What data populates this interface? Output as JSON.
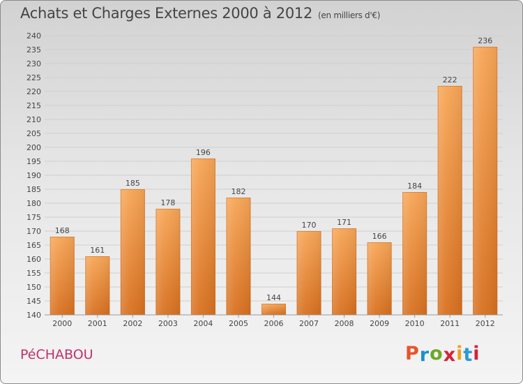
{
  "header": {
    "title": "Achats et Charges Externes 2000 à 2012",
    "subtitle": "(en milliers d'€)"
  },
  "footer": {
    "commune": "PéCHABOU",
    "brand": "Proxiti",
    "brand_colors": [
      "#e8542b",
      "#1a8fd0",
      "#6aaa24",
      "#d4223a",
      "#f0a020",
      "#2a9ad6",
      "#d4223a"
    ]
  },
  "colors": {
    "bar_light": "#f7a657",
    "bar_dark": "#d8701f",
    "grid": "#cfcfcf",
    "text": "#444444"
  },
  "chart_data": {
    "type": "bar",
    "categories": [
      "2000",
      "2001",
      "2002",
      "2003",
      "2004",
      "2005",
      "2006",
      "2007",
      "2008",
      "2009",
      "2010",
      "2011",
      "2012"
    ],
    "values": [
      168,
      161,
      185,
      178,
      196,
      182,
      144,
      170,
      171,
      166,
      184,
      222,
      236
    ],
    "data_labels": [
      "168",
      "161",
      "185",
      "178",
      "196",
      "182",
      "144",
      "170",
      "171",
      "166",
      "184",
      "222",
      "236"
    ],
    "yticks": [
      "140",
      "145",
      "150",
      "155",
      "160",
      "165",
      "170",
      "175",
      "180",
      "185",
      "190",
      "195",
      "200",
      "205",
      "210",
      "215",
      "220",
      "225",
      "230",
      "235",
      "240"
    ],
    "ylim": [
      140,
      240
    ],
    "grid": true
  }
}
